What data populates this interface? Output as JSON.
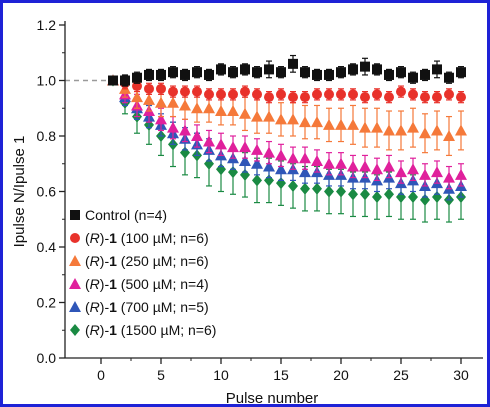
{
  "chart_data": {
    "type": "scatter",
    "title": "",
    "xlabel": "Pulse number",
    "ylabel": "Ipulse N/Ipulse 1",
    "xlim": [
      -3,
      31.5
    ],
    "ylim": [
      0,
      1.2
    ],
    "x_ticks": [
      0,
      5,
      10,
      15,
      20,
      25,
      30
    ],
    "y_ticks": [
      0.0,
      0.2,
      0.4,
      0.6,
      0.8,
      1.0,
      1.2
    ],
    "x_tick_labels": [
      "0",
      "5",
      "10",
      "15",
      "20",
      "25",
      "30"
    ],
    "y_tick_labels": [
      "0.0",
      "0.2",
      "0.4",
      "0.6",
      "0.8",
      "1.0",
      "1.2"
    ],
    "reference_line": {
      "y": 1.0,
      "style": "dashed",
      "color": "#9a9a9a"
    },
    "grid": false,
    "legend_placement": "bottom-left",
    "x": [
      1,
      2,
      3,
      4,
      5,
      6,
      7,
      8,
      9,
      10,
      11,
      12,
      13,
      14,
      15,
      16,
      17,
      18,
      19,
      20,
      21,
      22,
      23,
      24,
      25,
      26,
      27,
      28,
      29,
      30
    ],
    "series": [
      {
        "name": "Control (n=4)",
        "legend_parts": [
          {
            "text": "Control (n=4)",
            "bold": false,
            "italic": false
          }
        ],
        "marker": "square",
        "color": "#111111",
        "values": [
          1.0,
          1.0,
          1.01,
          1.02,
          1.02,
          1.03,
          1.02,
          1.03,
          1.02,
          1.04,
          1.03,
          1.04,
          1.03,
          1.04,
          1.03,
          1.06,
          1.03,
          1.02,
          1.02,
          1.03,
          1.04,
          1.05,
          1.04,
          1.02,
          1.03,
          1.01,
          1.02,
          1.04,
          1.01,
          1.03
        ],
        "errors": [
          0.01,
          0.02,
          0.02,
          0.02,
          0.02,
          0.02,
          0.02,
          0.02,
          0.02,
          0.02,
          0.02,
          0.02,
          0.02,
          0.03,
          0.02,
          0.03,
          0.02,
          0.02,
          0.02,
          0.02,
          0.02,
          0.03,
          0.02,
          0.02,
          0.02,
          0.02,
          0.02,
          0.03,
          0.02,
          0.02
        ]
      },
      {
        "name": "(R)-1 (100 µM; n=6)",
        "legend_parts": [
          {
            "text": "(",
            "bold": false,
            "italic": false
          },
          {
            "text": "R",
            "bold": false,
            "italic": true
          },
          {
            "text": ")-",
            "bold": false,
            "italic": false
          },
          {
            "text": "1",
            "bold": true,
            "italic": false
          },
          {
            "text": " (100 µM; n=6)",
            "bold": false,
            "italic": false
          }
        ],
        "marker": "circle",
        "color": "#e8322b",
        "values": [
          1.0,
          0.99,
          0.98,
          0.97,
          0.97,
          0.96,
          0.96,
          0.96,
          0.95,
          0.95,
          0.95,
          0.96,
          0.95,
          0.94,
          0.95,
          0.94,
          0.94,
          0.95,
          0.95,
          0.95,
          0.95,
          0.94,
          0.95,
          0.94,
          0.96,
          0.95,
          0.94,
          0.94,
          0.95,
          0.94
        ],
        "errors": [
          0.01,
          0.02,
          0.02,
          0.02,
          0.02,
          0.02,
          0.02,
          0.02,
          0.02,
          0.02,
          0.02,
          0.02,
          0.02,
          0.02,
          0.02,
          0.02,
          0.02,
          0.02,
          0.02,
          0.02,
          0.02,
          0.02,
          0.02,
          0.02,
          0.02,
          0.02,
          0.02,
          0.02,
          0.02,
          0.02
        ]
      },
      {
        "name": "(R)-1 (250 µM; n=6)",
        "legend_parts": [
          {
            "text": "(",
            "bold": false,
            "italic": false
          },
          {
            "text": "R",
            "bold": false,
            "italic": true
          },
          {
            "text": ")-",
            "bold": false,
            "italic": false
          },
          {
            "text": "1",
            "bold": true,
            "italic": false
          },
          {
            "text": " (250 µM; n=6)",
            "bold": false,
            "italic": false
          }
        ],
        "marker": "triangle-up",
        "color": "#f5793a",
        "values": [
          1.0,
          0.97,
          0.94,
          0.93,
          0.92,
          0.92,
          0.91,
          0.9,
          0.9,
          0.89,
          0.89,
          0.88,
          0.87,
          0.87,
          0.86,
          0.86,
          0.85,
          0.85,
          0.84,
          0.84,
          0.84,
          0.83,
          0.83,
          0.82,
          0.82,
          0.83,
          0.81,
          0.82,
          0.8,
          0.82
        ],
        "errors": [
          0.01,
          0.03,
          0.04,
          0.04,
          0.05,
          0.05,
          0.05,
          0.05,
          0.05,
          0.05,
          0.05,
          0.06,
          0.06,
          0.06,
          0.06,
          0.06,
          0.06,
          0.06,
          0.06,
          0.06,
          0.07,
          0.07,
          0.07,
          0.07,
          0.07,
          0.07,
          0.07,
          0.07,
          0.07,
          0.07
        ]
      },
      {
        "name": "(R)-1 (500 µM; n=4)",
        "legend_parts": [
          {
            "text": "(",
            "bold": false,
            "italic": false
          },
          {
            "text": "R",
            "bold": false,
            "italic": true
          },
          {
            "text": ")-",
            "bold": false,
            "italic": false
          },
          {
            "text": "1",
            "bold": true,
            "italic": false
          },
          {
            "text": " (500 µM; n=4)",
            "bold": false,
            "italic": false
          }
        ],
        "marker": "triangle-up",
        "color": "#e0209c",
        "values": [
          1.0,
          0.95,
          0.91,
          0.89,
          0.86,
          0.83,
          0.82,
          0.8,
          0.78,
          0.77,
          0.76,
          0.76,
          0.75,
          0.74,
          0.73,
          0.72,
          0.72,
          0.71,
          0.7,
          0.7,
          0.69,
          0.69,
          0.68,
          0.69,
          0.67,
          0.68,
          0.66,
          0.67,
          0.65,
          0.66
        ],
        "errors": [
          0.01,
          0.03,
          0.04,
          0.04,
          0.04,
          0.04,
          0.04,
          0.04,
          0.04,
          0.04,
          0.04,
          0.04,
          0.04,
          0.04,
          0.04,
          0.04,
          0.04,
          0.04,
          0.04,
          0.04,
          0.04,
          0.04,
          0.04,
          0.04,
          0.04,
          0.04,
          0.04,
          0.04,
          0.04,
          0.04
        ]
      },
      {
        "name": "(R)-1 (700 µM; n=5)",
        "legend_parts": [
          {
            "text": "(",
            "bold": false,
            "italic": false
          },
          {
            "text": "R",
            "bold": false,
            "italic": true
          },
          {
            "text": ")-",
            "bold": false,
            "italic": false
          },
          {
            "text": "1",
            "bold": true,
            "italic": false
          },
          {
            "text": " (700 µM; n=5)",
            "bold": false,
            "italic": false
          }
        ],
        "marker": "triangle-up",
        "color": "#2f56b8",
        "values": [
          1.0,
          0.94,
          0.9,
          0.87,
          0.84,
          0.81,
          0.79,
          0.77,
          0.75,
          0.73,
          0.72,
          0.71,
          0.7,
          0.69,
          0.68,
          0.68,
          0.67,
          0.67,
          0.66,
          0.66,
          0.65,
          0.65,
          0.64,
          0.65,
          0.63,
          0.64,
          0.62,
          0.63,
          0.61,
          0.62
        ],
        "errors": [
          0.01,
          0.03,
          0.04,
          0.04,
          0.04,
          0.04,
          0.04,
          0.04,
          0.04,
          0.04,
          0.04,
          0.04,
          0.04,
          0.04,
          0.04,
          0.04,
          0.04,
          0.04,
          0.04,
          0.04,
          0.04,
          0.04,
          0.04,
          0.04,
          0.04,
          0.04,
          0.04,
          0.04,
          0.04,
          0.04
        ]
      },
      {
        "name": "(R)-1 (1500 µM; n=6)",
        "legend_parts": [
          {
            "text": "(",
            "bold": false,
            "italic": false
          },
          {
            "text": "R",
            "bold": false,
            "italic": true
          },
          {
            "text": ")-",
            "bold": false,
            "italic": false
          },
          {
            "text": "1",
            "bold": true,
            "italic": false
          },
          {
            "text": " (1500 µM; n=6)",
            "bold": false,
            "italic": false
          }
        ],
        "marker": "diamond",
        "color": "#1a8a43",
        "values": [
          1.0,
          0.92,
          0.87,
          0.84,
          0.8,
          0.77,
          0.74,
          0.73,
          0.7,
          0.68,
          0.67,
          0.66,
          0.64,
          0.64,
          0.63,
          0.62,
          0.61,
          0.61,
          0.6,
          0.6,
          0.59,
          0.59,
          0.58,
          0.59,
          0.58,
          0.58,
          0.57,
          0.58,
          0.57,
          0.58
        ],
        "errors": [
          0.01,
          0.04,
          0.06,
          0.07,
          0.07,
          0.08,
          0.08,
          0.08,
          0.08,
          0.08,
          0.08,
          0.08,
          0.08,
          0.08,
          0.08,
          0.08,
          0.08,
          0.08,
          0.08,
          0.08,
          0.08,
          0.08,
          0.08,
          0.08,
          0.08,
          0.08,
          0.08,
          0.08,
          0.08,
          0.08
        ]
      }
    ]
  }
}
